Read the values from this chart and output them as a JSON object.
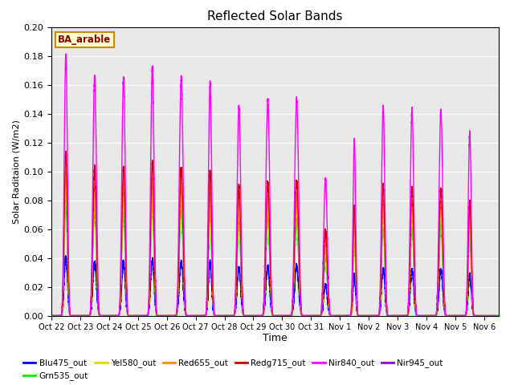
{
  "title": "Reflected Solar Bands",
  "xlabel": "Time",
  "ylabel": "Solar Raditaion (W/m2)",
  "annotation": "BA_arable",
  "ylim": [
    0.0,
    0.2
  ],
  "background_color": "#e8e8e8",
  "series_colors": {
    "Blu475_out": "#0000ff",
    "Grn535_out": "#00ee00",
    "Yel580_out": "#dddd00",
    "Red655_out": "#ff8800",
    "Redg715_out": "#cc0000",
    "Nir840_out": "#ff00ff",
    "Nir945_out": "#9900cc"
  },
  "tick_labels": [
    "Oct 22",
    "Oct 23",
    "Oct 24",
    "Oct 25",
    "Oct 26",
    "Oct 27",
    "Oct 28",
    "Oct 29",
    "Oct 30",
    "Oct 31",
    "Nov 1",
    "Nov 2",
    "Nov 3",
    "Nov 4",
    "Nov 5",
    "Nov 6"
  ],
  "day_peaks": [
    0.5,
    1.5,
    2.5,
    3.5,
    4.5,
    5.5,
    6.5,
    7.5,
    8.5,
    9.5,
    10.5,
    11.5,
    12.5,
    13.5,
    14.5
  ],
  "peak_half_widths": [
    0.18,
    0.2,
    0.19,
    0.19,
    0.21,
    0.18,
    0.2,
    0.21,
    0.22,
    0.2,
    0.15,
    0.18,
    0.19,
    0.2,
    0.17
  ],
  "peak_heights_nir840": [
    0.181,
    0.165,
    0.165,
    0.172,
    0.165,
    0.161,
    0.145,
    0.15,
    0.15,
    0.095,
    0.122,
    0.145,
    0.143,
    0.142,
    0.126
  ],
  "scales": {
    "Blu475_out": 0.225,
    "Grn535_out": 0.44,
    "Yel580_out": 0.5,
    "Red655_out": 0.55,
    "Redg715_out": 0.62,
    "Nir840_out": 1.0,
    "Nir945_out": 0.52
  },
  "gridcolor": "#ffffff",
  "plot_order": [
    "Blu475_out",
    "Nir945_out",
    "Grn535_out",
    "Yel580_out",
    "Red655_out",
    "Redg715_out",
    "Nir840_out"
  ],
  "legend_order": [
    "Blu475_out",
    "Grn535_out",
    "Yel580_out",
    "Red655_out",
    "Redg715_out",
    "Nir840_out",
    "Nir945_out"
  ]
}
